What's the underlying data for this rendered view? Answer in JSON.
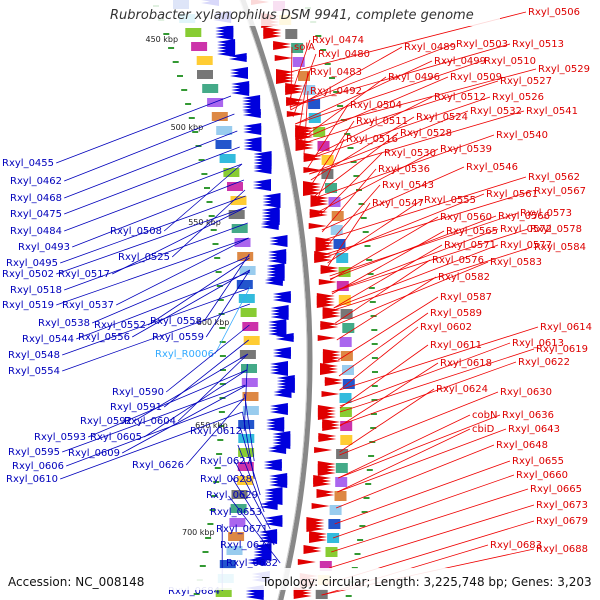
{
  "title": "Rubrobacter xylanophilus DSM 9941, complete genome",
  "footer": {
    "accession": "Accession: NC_008148",
    "topology": "Topology: circular; Length: 3,225,748 bp; Genes: 3,203"
  },
  "colors": {
    "plus_strand": "#e00000",
    "minus_strand": "#0000dd",
    "rna": "#33aaff",
    "backbone": "#888888",
    "tick": "#339933"
  },
  "kbp_labels": [
    "450 kbp",
    "500 kbp",
    "550 kbp",
    "600 kbp",
    "650 kbp",
    "700 kbp"
  ],
  "left_labels": [
    "Rxyl_0455",
    "Rxyl_0462",
    "Rxyl_0468",
    "Rxyl_0475",
    "Rxyl_0484",
    "Rxyl_0493",
    "Rxyl_0508",
    "Rxyl_0495",
    "Rxyl_0525",
    "Rxyl_0502",
    "Rxyl_0517",
    "Rxyl_0518",
    "Rxyl_0519",
    "Rxyl_0537",
    "Rxyl_0538",
    "Rxyl_0552",
    "Rxyl_0558",
    "Rxyl_0544",
    "Rxyl_0556",
    "Rxyl_0559",
    "Rxyl_0548",
    "Rxyl_0554",
    "Rxyl_R0006",
    "Rxyl_0590",
    "Rxyl_0591",
    "Rxyl_0592",
    "Rxyl_0604",
    "Rxyl_0593",
    "Rxyl_0605",
    "Rxyl_0612",
    "Rxyl_0595",
    "Rxyl_0609",
    "Rxyl_0606",
    "Rxyl_0626",
    "Rxyl_0627",
    "Rxyl_0610",
    "Rxyl_0628",
    "Rxyl_0629",
    "Rxyl_0653",
    "Rxyl_0671",
    "Rxyl_0674",
    "Rxyl_0682",
    "Rxyl_0684"
  ],
  "right_labels": [
    "Rxyl_0506",
    "Rxyl_0474",
    "Rxyl_0489",
    "Rxyl_0503",
    "Rxyl_0513",
    "solA",
    "Rxyl_0480",
    "Rxyl_0499",
    "Rxyl_0510",
    "Rxyl_0529",
    "Rxyl_0483",
    "Rxyl_0496",
    "Rxyl_0509",
    "Rxyl_0527",
    "Rxyl_0492",
    "Rxyl_0512",
    "Rxyl_0526",
    "Rxyl_0504",
    "Rxyl_0532",
    "Rxyl_0541",
    "Rxyl_0511",
    "Rxyl_0524",
    "Rxyl_0528",
    "Rxyl_0540",
    "Rxyl_0516",
    "Rxyl_0530",
    "Rxyl_0539",
    "Rxyl_0536",
    "Rxyl_0546",
    "Rxyl_0562",
    "Rxyl_0543",
    "Rxyl_0561",
    "Rxyl_0567",
    "Rxyl_0547",
    "Rxyl_0555",
    "Rxyl_0573",
    "Rxyl_0560",
    "Rxyl_0566",
    "Rxyl_0565",
    "Rxyl_0572",
    "Rxyl_0578",
    "Rxyl_0571",
    "Rxyl_0577",
    "Rxyl_0584",
    "Rxyl_0576",
    "Rxyl_0583",
    "Rxyl_0582",
    "Rxyl_0587",
    "Rxyl_0589",
    "Rxyl_0602",
    "Rxyl_0614",
    "Rxyl_0611",
    "Rxyl_0613",
    "Rxyl_0619",
    "Rxyl_0618",
    "Rxyl_0622",
    "Rxyl_0624",
    "Rxyl_0630",
    "cobN",
    "Rxyl_0636",
    "cbiD",
    "Rxyl_0643",
    "Rxyl_0648",
    "Rxyl_0655",
    "Rxyl_0660",
    "Rxyl_0665",
    "Rxyl_0673",
    "Rxyl_0679",
    "Rxyl_0683",
    "Rxyl_0688"
  ]
}
